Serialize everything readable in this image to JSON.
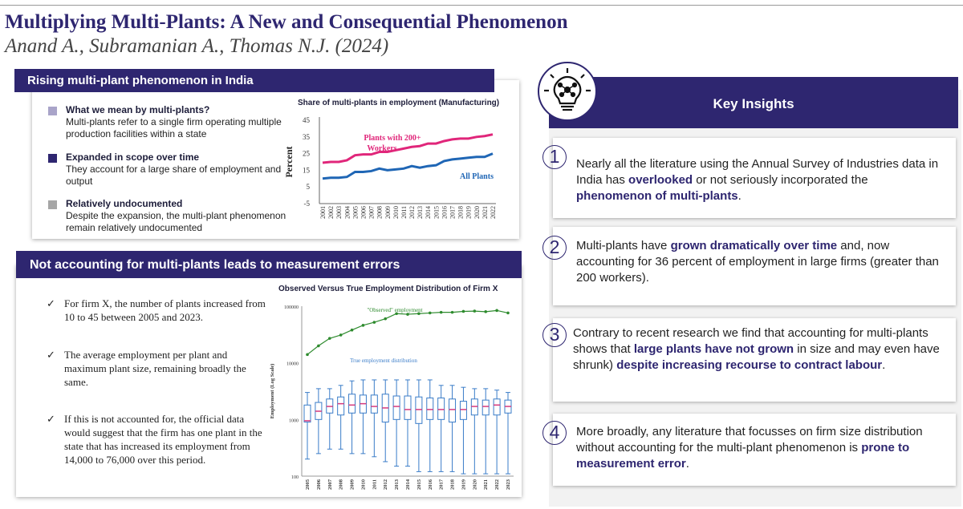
{
  "title": "Multiplying Multi-Plants: A New and Consequential Phenomenon",
  "authors": "Anand A., Subramanian A., Thomas N.J. (2024)",
  "section1": {
    "header": "Rising multi-plant phenomenon in India",
    "items": [
      {
        "heading": "What we mean by multi-plants?",
        "body": "Multi-plants refer to a single firm operating multiple production facilities within a state",
        "color": "#a9a4c9"
      },
      {
        "heading": "Expanded in scope over time",
        "body": "They account for a large share of employment and output",
        "color": "#2e2670"
      },
      {
        "heading": "Relatively undocumented",
        "body": "Despite the expansion, the multi-plant phenomenon remain relatively undocumented",
        "color": "#a6a6a6"
      }
    ]
  },
  "section2": {
    "header": "Not accounting for multi-plants leads to measurement errors",
    "items": [
      "For firm X, the number of plants increased from 10 to 45 between 2005 and 2023.",
      "The average employment per plant and maximum plant size, remaining broadly the same.",
      "If this is not accounted for, the official data would suggest that the firm has one plant in the state that has increased its employment from 14,000 to 76,000 over this period."
    ]
  },
  "insights": {
    "header": "Key Insights",
    "cards": [
      {
        "num": "1",
        "pre": "Nearly all the literature using the Annual Survey of Industries data in India has ",
        "b1": "overlooked",
        "mid": " or not seriously incorporated the ",
        "b2": "phenomenon of multi-plants",
        "post": "."
      },
      {
        "num": "2",
        "pre": "Multi-plants have ",
        "b1": "grown dramatically over time",
        "mid": " and, now accounting for 36 percent of employment in large firms (greater than 200 workers).",
        "b2": "",
        "post": ""
      },
      {
        "num": "3",
        "pre": "Contrary to recent research we find that accounting for multi-plants shows that ",
        "b1": "large plants have not grown",
        "mid": " in size and may even have shrunk) ",
        "b2": "despite increasing recourse to contract labour",
        "post": "."
      },
      {
        "num": "4",
        "pre": "More broadly, any literature that focusses on firm size distribution without accounting for the multi-plant phenomenon is ",
        "b1": "prone to measurement error",
        "mid": ".",
        "b2": "",
        "post": ""
      }
    ]
  },
  "chart_data": [
    {
      "type": "line",
      "title": "Share of multi-plants in employment (Manufacturing)",
      "ylabel": "Percent",
      "ylim": [
        -5,
        45
      ],
      "yticks": [
        "45",
        "35",
        "25",
        "15",
        "5",
        "-5"
      ],
      "x": [
        "2001",
        "2002",
        "2003",
        "2004",
        "2005",
        "2006",
        "2007",
        "2008",
        "2009",
        "2010",
        "2011",
        "2012",
        "2013",
        "2014",
        "2015",
        "2016",
        "2017",
        "2018",
        "2019",
        "2020",
        "2021",
        "2022"
      ],
      "series": [
        {
          "name": "Plants with 200+ Workers",
          "color": "#e0267a",
          "values": [
            19.5,
            20,
            20,
            21,
            24,
            24.5,
            24.5,
            26,
            26,
            27,
            28,
            29,
            29.5,
            31,
            31,
            32.5,
            33.5,
            34,
            34,
            35,
            35.5,
            36.5
          ]
        },
        {
          "name": "All Plants",
          "color": "#1f66b5",
          "values": [
            10,
            10.5,
            10.5,
            11,
            14,
            14,
            14.5,
            16,
            15,
            15.5,
            16,
            17.5,
            16.5,
            17.5,
            18,
            20.5,
            21.5,
            22,
            22.5,
            23,
            23,
            25
          ]
        }
      ]
    },
    {
      "type": "line",
      "title": "Observed Versus True Employment Distribution of Firm X",
      "ylabel": "Employment (Log Scale)",
      "scale": "log",
      "ylim": [
        100,
        100000
      ],
      "yticks": [
        "100000",
        "10000",
        "1000",
        "100"
      ],
      "x": [
        "2005",
        "2006",
        "2007",
        "2008",
        "2009",
        "2010",
        "2011",
        "2012",
        "2013",
        "2014",
        "2015",
        "2016",
        "2017",
        "2018",
        "2019",
        "2020",
        "2021",
        "2022",
        "2023"
      ],
      "observed": {
        "name": "\"Observed\" employment",
        "color": "#2e8b2e",
        "values": [
          14000,
          20000,
          27000,
          31000,
          38000,
          46000,
          52000,
          60000,
          74000,
          72000,
          74000,
          76000,
          78000,
          78000,
          81000,
          82000,
          80000,
          84000,
          76000
        ]
      },
      "true_label": "True employment distribution",
      "boxes": [
        {
          "min": 200,
          "q1": 900,
          "med": 950,
          "q3": 1800,
          "max": 3000
        },
        {
          "min": 250,
          "q1": 1000,
          "med": 1400,
          "q3": 2000,
          "max": 3500
        },
        {
          "min": 300,
          "q1": 1300,
          "med": 1700,
          "q3": 2300,
          "max": 3500
        },
        {
          "min": 300,
          "q1": 1200,
          "med": 1900,
          "q3": 2500,
          "max": 4000
        },
        {
          "min": 250,
          "q1": 1300,
          "med": 1800,
          "q3": 2800,
          "max": 4800
        },
        {
          "min": 250,
          "q1": 1300,
          "med": 1900,
          "q3": 2700,
          "max": 5000
        },
        {
          "min": 220,
          "q1": 1300,
          "med": 1700,
          "q3": 2700,
          "max": 5000
        },
        {
          "min": 180,
          "q1": 900,
          "med": 1600,
          "q3": 2800,
          "max": 5000
        },
        {
          "min": 150,
          "q1": 1000,
          "med": 1700,
          "q3": 2600,
          "max": 5000
        },
        {
          "min": 150,
          "q1": 1000,
          "med": 1500,
          "q3": 2600,
          "max": 5000
        },
        {
          "min": 120,
          "q1": 850,
          "med": 1500,
          "q3": 2500,
          "max": 5000
        },
        {
          "min": 120,
          "q1": 1000,
          "med": 1500,
          "q3": 2400,
          "max": 5000
        },
        {
          "min": 120,
          "q1": 1000,
          "med": 1500,
          "q3": 2400,
          "max": 4000
        },
        {
          "min": 120,
          "q1": 900,
          "med": 1500,
          "q3": 2300,
          "max": 4000
        },
        {
          "min": 110,
          "q1": 1000,
          "med": 1500,
          "q3": 2100,
          "max": 3700
        },
        {
          "min": 110,
          "q1": 1200,
          "med": 1700,
          "q3": 2300,
          "max": 3500
        },
        {
          "min": 110,
          "q1": 1200,
          "med": 1700,
          "q3": 2200,
          "max": 3500
        },
        {
          "min": 110,
          "q1": 1200,
          "med": 1800,
          "q3": 2300,
          "max": 3300
        },
        {
          "min": 110,
          "q1": 1300,
          "med": 1700,
          "q3": 2200,
          "max": 3000
        }
      ]
    }
  ]
}
